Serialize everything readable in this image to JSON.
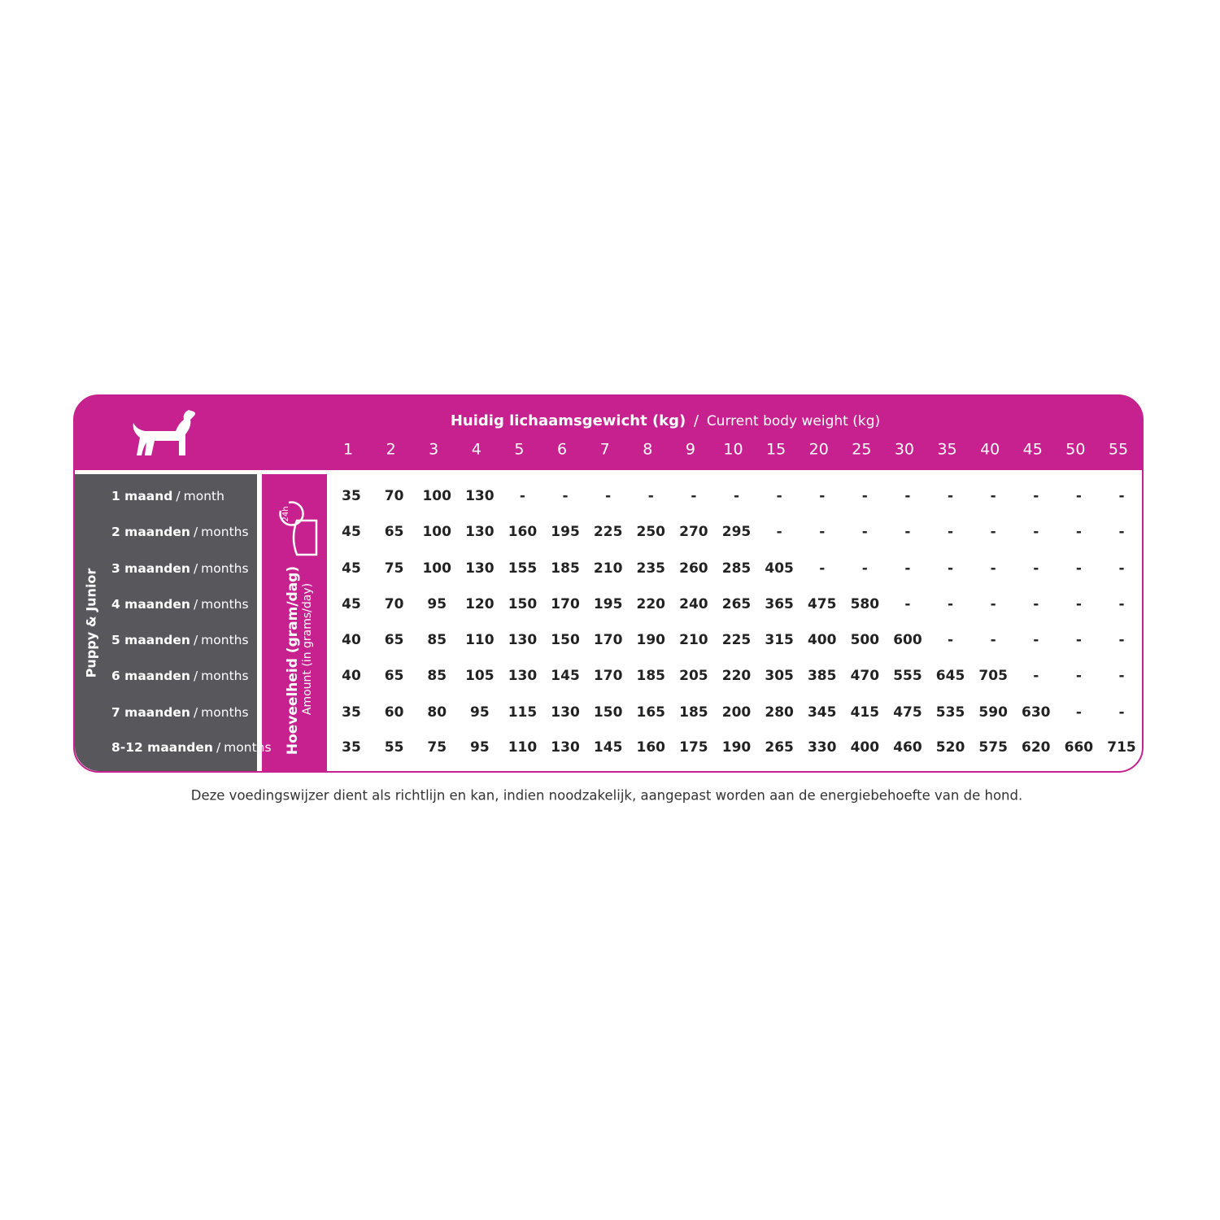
{
  "header": {
    "title_nl": "Huidig lichaamsgewicht (kg)",
    "separator": "/",
    "title_en": "Current body weight (kg)",
    "weights": [
      1,
      2,
      3,
      4,
      5,
      6,
      7,
      8,
      9,
      10,
      15,
      20,
      25,
      30,
      35,
      40,
      45,
      50,
      55
    ]
  },
  "side_label": "Puppy & Junior",
  "amount_label": {
    "nl": "Hoeveelheid (gram/dag)",
    "en": "Amount (in grams/day)",
    "icon_text": "24h"
  },
  "rows": [
    {
      "label_nl": "1 maand",
      "label_en": "month",
      "values": [
        35,
        70,
        100,
        130,
        "-",
        "-",
        "-",
        "-",
        "-",
        "-",
        "-",
        "-",
        "-",
        "-",
        "-",
        "-",
        "-",
        "-",
        "-"
      ]
    },
    {
      "label_nl": "2 maanden",
      "label_en": "months",
      "values": [
        45,
        65,
        100,
        130,
        160,
        195,
        225,
        250,
        270,
        295,
        "-",
        "-",
        "-",
        "-",
        "-",
        "-",
        "-",
        "-",
        "-"
      ]
    },
    {
      "label_nl": "3 maanden",
      "label_en": "months",
      "values": [
        45,
        75,
        100,
        130,
        155,
        185,
        210,
        235,
        260,
        285,
        405,
        "-",
        "-",
        "-",
        "-",
        "-",
        "-",
        "-",
        "-"
      ]
    },
    {
      "label_nl": "4 maanden",
      "label_en": "months",
      "values": [
        45,
        70,
        95,
        120,
        150,
        170,
        195,
        220,
        240,
        265,
        365,
        475,
        580,
        "-",
        "-",
        "-",
        "-",
        "-",
        "-"
      ]
    },
    {
      "label_nl": "5 maanden",
      "label_en": "months",
      "values": [
        40,
        65,
        85,
        110,
        130,
        150,
        170,
        190,
        210,
        225,
        315,
        400,
        500,
        600,
        "-",
        "-",
        "-",
        "-",
        "-"
      ]
    },
    {
      "label_nl": "6 maanden",
      "label_en": "months",
      "values": [
        40,
        65,
        85,
        105,
        130,
        145,
        170,
        185,
        205,
        220,
        305,
        385,
        470,
        555,
        645,
        705,
        "-",
        "-",
        "-"
      ]
    },
    {
      "label_nl": "7 maanden",
      "label_en": "months",
      "values": [
        35,
        60,
        80,
        95,
        115,
        130,
        150,
        165,
        185,
        200,
        280,
        345,
        415,
        475,
        535,
        590,
        630,
        "-",
        "-"
      ]
    },
    {
      "label_nl": "8-12 maanden",
      "label_en": "months",
      "values": [
        35,
        55,
        75,
        95,
        110,
        130,
        145,
        160,
        175,
        190,
        265,
        330,
        400,
        460,
        520,
        575,
        620,
        660,
        715
      ]
    }
  ],
  "footnote": "Deze voedingswijzer dient als richtlijn en kan, indien noodzakelijk, aangepast worden aan de energiebehoefte van de hond."
}
